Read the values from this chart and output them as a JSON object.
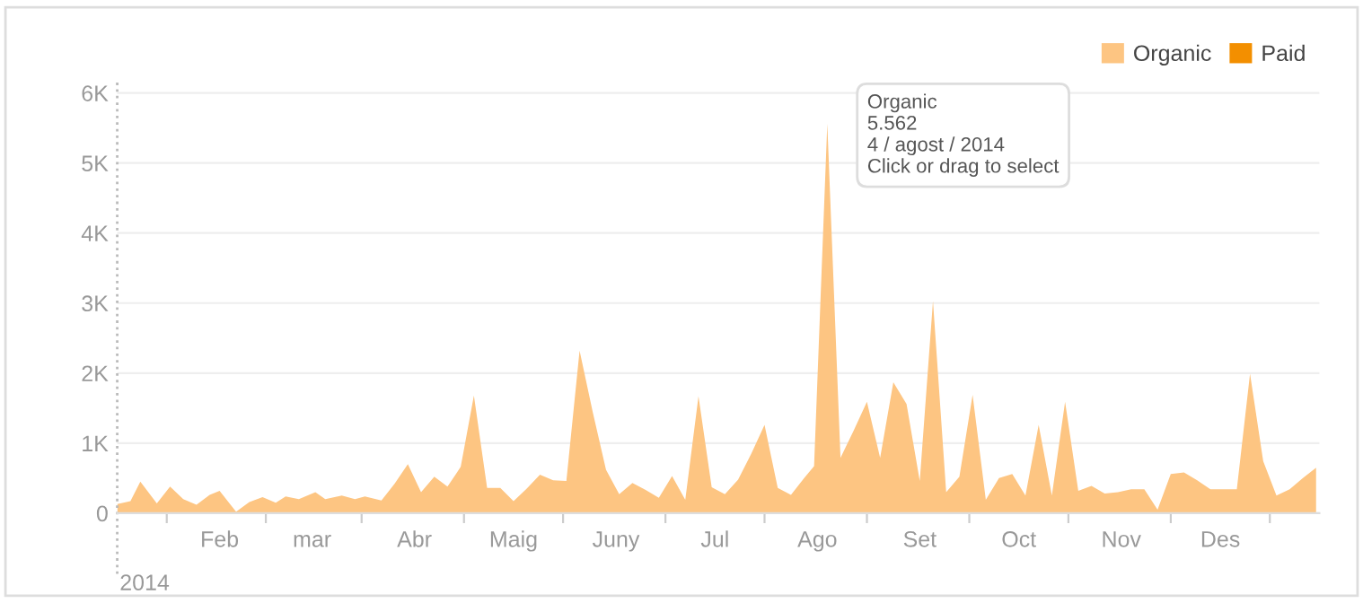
{
  "chart_data": {
    "type": "area",
    "legend": "top right",
    "grid": "y",
    "x": [
      "2014-01-01",
      "2014-01-05",
      "2014-01-08",
      "2014-01-13",
      "2014-01-17",
      "2014-01-21",
      "2014-01-25",
      "2014-01-29",
      "2014-02-01",
      "2014-02-06",
      "2014-02-10",
      "2014-02-14",
      "2014-02-18",
      "2014-02-21",
      "2014-02-25",
      "2014-03-02",
      "2014-03-05",
      "2014-03-10",
      "2014-03-14",
      "2014-03-17",
      "2014-03-22",
      "2014-03-26",
      "2014-03-30",
      "2014-04-03",
      "2014-04-07",
      "2014-04-11",
      "2014-04-15",
      "2014-04-19",
      "2014-04-23",
      "2014-04-27",
      "2014-05-01",
      "2014-05-05",
      "2014-05-09",
      "2014-05-13",
      "2014-05-17",
      "2014-05-21",
      "2014-05-25",
      "2014-05-29",
      "2014-06-02",
      "2014-06-06",
      "2014-06-10",
      "2014-06-14",
      "2014-06-18",
      "2014-06-22",
      "2014-06-26",
      "2014-06-30",
      "2014-07-04",
      "2014-07-08",
      "2014-07-12",
      "2014-07-16",
      "2014-07-20",
      "2014-07-24",
      "2014-07-28",
      "2014-07-31",
      "2014-08-04",
      "2014-08-08",
      "2014-08-12",
      "2014-08-16",
      "2014-08-20",
      "2014-08-24",
      "2014-08-28",
      "2014-09-01",
      "2014-09-05",
      "2014-09-09",
      "2014-09-13",
      "2014-09-17",
      "2014-09-21",
      "2014-09-25",
      "2014-09-29",
      "2014-10-03",
      "2014-10-07",
      "2014-10-11",
      "2014-10-15",
      "2014-10-19",
      "2014-10-23",
      "2014-10-27",
      "2014-10-31",
      "2014-11-04",
      "2014-11-08",
      "2014-11-12",
      "2014-11-16",
      "2014-11-20",
      "2014-11-24",
      "2014-11-28",
      "2014-12-02",
      "2014-12-06",
      "2014-12-10",
      "2014-12-14",
      "2014-12-18",
      "2014-12-22",
      "2014-12-26",
      "2014-12-30"
    ],
    "series": [
      {
        "name": "Organic",
        "color": "#fdc582",
        "values": [
          130,
          170,
          450,
          140,
          380,
          200,
          120,
          260,
          320,
          20,
          160,
          230,
          150,
          240,
          200,
          300,
          200,
          250,
          200,
          240,
          180,
          420,
          700,
          300,
          520,
          380,
          660,
          1680,
          360,
          360,
          170,
          350,
          550,
          470,
          460,
          2320,
          1440,
          620,
          270,
          430,
          330,
          220,
          530,
          190,
          1670,
          370,
          270,
          480,
          850,
          1260,
          360,
          260,
          500,
          670,
          5562,
          790,
          1180,
          1590,
          790,
          1870,
          1560,
          460,
          3030,
          300,
          520,
          1690,
          190,
          500,
          560,
          250,
          1260,
          250,
          1590,
          320,
          390,
          280,
          300,
          340,
          340,
          50,
          560,
          580,
          470,
          340,
          340,
          340,
          1990,
          740,
          250,
          340,
          500,
          650
        ]
      },
      {
        "name": "Paid",
        "color": "#f38f00",
        "values": [
          null,
          null,
          null,
          null,
          null,
          null,
          null,
          null,
          null,
          null,
          null,
          null,
          null,
          null,
          null,
          null,
          null,
          null,
          null,
          null,
          null,
          null,
          null,
          null,
          null,
          null,
          null,
          null,
          null,
          null,
          null,
          null,
          null,
          null,
          null,
          null,
          null,
          null,
          null,
          null,
          null,
          null,
          null,
          null,
          null,
          null,
          null,
          null,
          null,
          null,
          null,
          null,
          null,
          null,
          null,
          null,
          null,
          null,
          null,
          null,
          null,
          null,
          null,
          null,
          null,
          null,
          null,
          null,
          null,
          null,
          null,
          null,
          null,
          null,
          null,
          null,
          null,
          null,
          null,
          null,
          null,
          null,
          null,
          null,
          null,
          null,
          null,
          null,
          null,
          null,
          null,
          null
        ]
      }
    ],
    "xlim": [
      "2014-01-01",
      "2014-12-31"
    ],
    "xticks": [
      {
        "value": "2014-01-16",
        "label": null
      },
      {
        "value": "2014-02-01",
        "label": "Feb"
      },
      {
        "value": "2014-02-15",
        "label": null
      },
      {
        "value": "2014-03-01",
        "label": "mar"
      },
      {
        "value": "2014-03-16",
        "label": null
      },
      {
        "value": "2014-04-01",
        "label": "Abr"
      },
      {
        "value": "2014-04-16",
        "label": null
      },
      {
        "value": "2014-05-01",
        "label": "Maig"
      },
      {
        "value": "2014-05-16",
        "label": null
      },
      {
        "value": "2014-06-01",
        "label": "Juny"
      },
      {
        "value": "2014-06-16",
        "label": null
      },
      {
        "value": "2014-07-01",
        "label": "Jul"
      },
      {
        "value": "2014-07-16",
        "label": null
      },
      {
        "value": "2014-08-01",
        "label": "Ago"
      },
      {
        "value": "2014-08-16",
        "label": null
      },
      {
        "value": "2014-09-01",
        "label": "Set"
      },
      {
        "value": "2014-09-16",
        "label": null
      },
      {
        "value": "2014-10-01",
        "label": "Oct"
      },
      {
        "value": "2014-10-16",
        "label": null
      },
      {
        "value": "2014-11-01",
        "label": "Nov"
      },
      {
        "value": "2014-11-16",
        "label": null
      },
      {
        "value": "2014-12-01",
        "label": "Des"
      },
      {
        "value": "2014-12-16",
        "label": null
      }
    ],
    "ylim": [
      0,
      6200
    ],
    "yticks": [
      {
        "value": 0,
        "label": "0"
      },
      {
        "value": 1000,
        "label": "1K"
      },
      {
        "value": 2000,
        "label": "2K"
      },
      {
        "value": 3000,
        "label": "3K"
      },
      {
        "value": 4000,
        "label": "4K"
      },
      {
        "value": 5000,
        "label": "5K"
      },
      {
        "value": 6000,
        "label": "6K"
      }
    ],
    "annotations": [
      "2014",
      {
        "text": "Organic\n5.562\n4 / agost / 2014\nClick or drag to select",
        "x": "2014-08-04",
        "y": 5562
      }
    ]
  }
}
